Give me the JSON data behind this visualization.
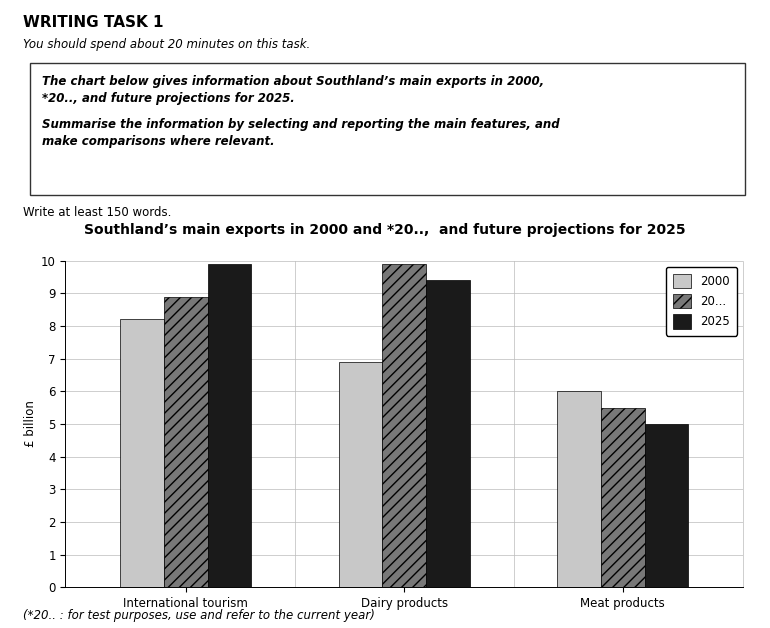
{
  "title": "Southland’s main exports in 2000 and *20..,  and future projections for 2025",
  "categories": [
    "International tourism",
    "Dairy products",
    "Meat products"
  ],
  "series": {
    "2000": [
      8.2,
      6.9,
      6.0
    ],
    "20...": [
      8.9,
      9.9,
      5.5
    ],
    "2025": [
      9.9,
      9.4,
      5.0
    ]
  },
  "legend_labels": [
    "2000",
    "20...",
    "2025"
  ],
  "ylabel": "£ billion",
  "ylim": [
    0,
    10
  ],
  "yticks": [
    0,
    1,
    2,
    3,
    4,
    5,
    6,
    7,
    8,
    9,
    10
  ],
  "bar_colors": {
    "2000": "#c8c8c8",
    "20...": "#787878",
    "2025": "#1a1a1a"
  },
  "hatch_2000": "",
  "hatch_20": "///",
  "hatch_2025": "",
  "fig_bg": "#ffffff",
  "header_title": "WRITING TASK 1",
  "header_sub": "You should spend about 20 minutes on this task.",
  "box_line1": "The chart below gives information about Southland’s main exports in 2000,",
  "box_line2": "*20.., and future projections for 2025.",
  "box_line3": "Summarise the information by selecting and reporting the main features, and",
  "box_line4": "make comparisons where relevant.",
  "footer": "Write at least 150 words.",
  "footnote": "(*20.. : for test purposes, use and refer to the current year)"
}
